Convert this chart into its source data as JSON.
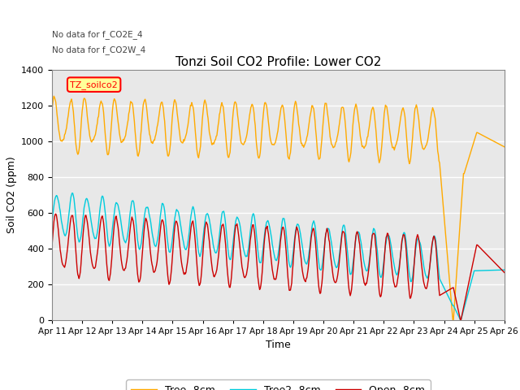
{
  "title": "Tonzi Soil CO2 Profile: Lower CO2",
  "xlabel": "Time",
  "ylabel": "Soil CO2 (ppm)",
  "ylim": [
    0,
    1400
  ],
  "yticks": [
    0,
    200,
    400,
    600,
    800,
    1000,
    1200,
    1400
  ],
  "annotations": [
    "No data for f_CO2E_4",
    "No data for f_CO2W_4"
  ],
  "legend_label": "TZ_soilco2",
  "line_labels": [
    "Open -8cm",
    "Tree -8cm",
    "Tree2 -8cm"
  ],
  "line_colors": [
    "#cc0000",
    "#ffaa00",
    "#00ccdd"
  ],
  "plot_bg_color": "#e8e8e8",
  "grid_color": "#ffffff",
  "num_points": 720
}
